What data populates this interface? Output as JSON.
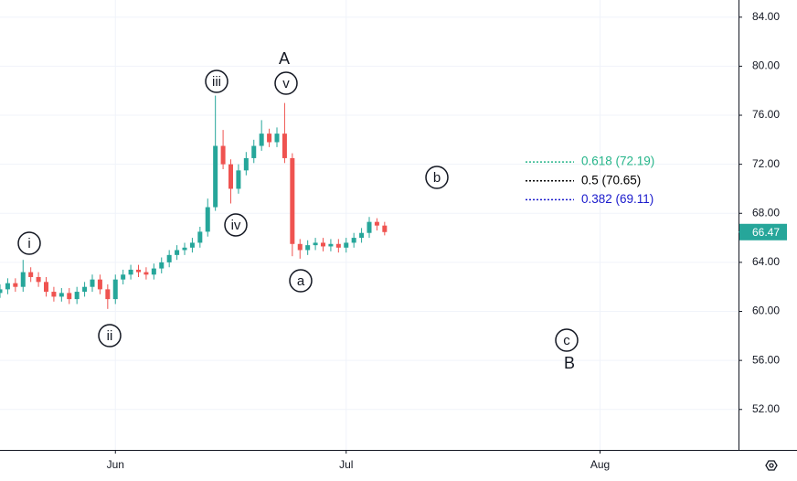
{
  "chart_data": {
    "type": "candlestick",
    "x": [
      0,
      1,
      2,
      3,
      4,
      5,
      6,
      7,
      8,
      9,
      10,
      11,
      12,
      13,
      14,
      15,
      16,
      17,
      18,
      19,
      20,
      21,
      22,
      23,
      24,
      25,
      26,
      27,
      28,
      29,
      30,
      31,
      32,
      33,
      34,
      35,
      36,
      37,
      38,
      39,
      40,
      41,
      42,
      43,
      44,
      45,
      46,
      47,
      48,
      49,
      50
    ],
    "open": [
      61.5,
      61.8,
      62.3,
      62.0,
      63.2,
      62.8,
      62.4,
      61.6,
      61.2,
      61.5,
      61.0,
      61.6,
      62.0,
      62.6,
      61.8,
      61.0,
      62.6,
      63.0,
      63.4,
      63.2,
      63.0,
      63.5,
      64.0,
      64.6,
      65.0,
      65.2,
      65.6,
      66.5,
      68.5,
      73.5,
      72.0,
      70.0,
      71.5,
      72.5,
      73.5,
      74.5,
      73.8,
      74.5,
      72.5,
      65.5,
      65.0,
      65.4,
      65.6,
      65.3,
      65.5,
      65.2,
      65.6,
      66.0,
      66.4,
      67.3,
      67.0
    ],
    "high": [
      62.2,
      62.7,
      62.7,
      64.2,
      63.6,
      63.2,
      62.8,
      62.0,
      61.9,
      61.9,
      62.0,
      62.4,
      63.0,
      63.0,
      62.2,
      63.0,
      63.4,
      63.8,
      63.8,
      63.6,
      63.9,
      64.4,
      65.0,
      65.4,
      65.6,
      66.0,
      66.9,
      69.2,
      77.6,
      74.8,
      72.4,
      72.0,
      73.0,
      74.0,
      75.6,
      74.9,
      75.0,
      77.0,
      72.9,
      65.9,
      65.8,
      66.0,
      66.0,
      65.9,
      65.9,
      66.0,
      66.4,
      66.8,
      67.7,
      67.6,
      67.3
    ],
    "low": [
      61.1,
      61.4,
      61.6,
      61.6,
      62.4,
      62.0,
      61.2,
      60.8,
      60.8,
      60.6,
      60.6,
      61.2,
      61.6,
      61.4,
      60.2,
      60.6,
      62.2,
      62.6,
      62.8,
      62.6,
      62.6,
      63.1,
      63.6,
      64.2,
      64.6,
      64.8,
      65.2,
      66.1,
      68.2,
      71.6,
      68.8,
      69.6,
      71.1,
      72.1,
      73.1,
      73.4,
      73.4,
      72.1,
      64.5,
      64.3,
      64.6,
      65.0,
      64.9,
      64.9,
      64.8,
      64.8,
      65.2,
      65.6,
      66.0,
      66.6,
      66.2
    ],
    "close": [
      61.8,
      62.3,
      62.0,
      63.2,
      62.8,
      62.4,
      61.6,
      61.2,
      61.5,
      61.0,
      61.6,
      62.0,
      62.6,
      61.8,
      61.0,
      62.6,
      63.0,
      63.4,
      63.2,
      63.0,
      63.5,
      64.0,
      64.6,
      65.0,
      65.2,
      65.6,
      66.5,
      68.5,
      73.5,
      72.0,
      70.0,
      71.5,
      72.5,
      73.5,
      74.5,
      73.8,
      74.5,
      72.5,
      65.5,
      65.0,
      65.4,
      65.6,
      65.3,
      65.5,
      65.2,
      65.6,
      66.0,
      66.4,
      67.3,
      67.0,
      66.47
    ],
    "up_color": "#26a69a",
    "down_color": "#ef5350",
    "xlim": [
      0,
      96
    ],
    "xticks": [
      {
        "value": 15,
        "label": "Jun"
      },
      {
        "value": 45,
        "label": "Jul"
      },
      {
        "value": 78,
        "label": "Aug"
      }
    ],
    "ylim": [
      48.7,
      85.4
    ],
    "yticks": [
      {
        "value": 52,
        "label": "52.00"
      },
      {
        "value": 56,
        "label": "56.00"
      },
      {
        "value": 60,
        "label": "60.00"
      },
      {
        "value": 64,
        "label": "64.00"
      },
      {
        "value": 68,
        "label": "68.00"
      },
      {
        "value": 72,
        "label": "72.00"
      },
      {
        "value": 76,
        "label": "76.00"
      },
      {
        "value": 80,
        "label": "80.00"
      },
      {
        "value": 84,
        "label": "84.00"
      }
    ],
    "grid": true,
    "annotations": [
      "i",
      "ii",
      "iii",
      "iv",
      "v",
      "A",
      "a",
      "b",
      "c",
      "B"
    ],
    "fib_levels": [
      {
        "value": 72.19,
        "label": "0.618 (72.19)",
        "color": "#26b58a"
      },
      {
        "value": 70.65,
        "label": "0.5 (70.65)",
        "color": "#000000"
      },
      {
        "value": 69.11,
        "label": "0.382 (69.11)",
        "color": "#1a1acc"
      }
    ]
  }
}
